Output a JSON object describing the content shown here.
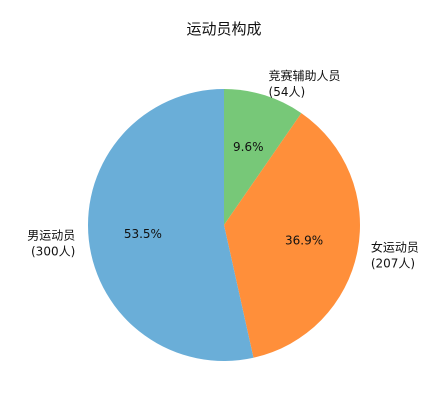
{
  "chart_data": {
    "type": "pie",
    "title": "运动员构成",
    "slices": [
      {
        "name": "竞赛辅助人员",
        "count_label": "(54人)",
        "value": 54,
        "percent_label": "9.6%",
        "color": "#77c878"
      },
      {
        "name": "女运动员",
        "count_label": "(207人)",
        "value": 207,
        "percent_label": "36.9%",
        "color": "#ff8f3a"
      },
      {
        "name": "男运动员",
        "count_label": "(300人)",
        "value": 300,
        "percent_label": "53.5%",
        "color": "#6aaed8"
      }
    ],
    "start_angle": "12 o'clock",
    "direction": "clockwise",
    "legend": "none"
  }
}
